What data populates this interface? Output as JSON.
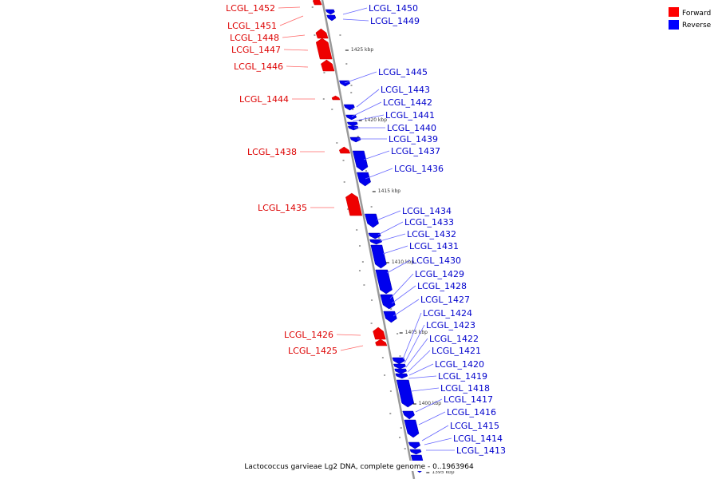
{
  "legend": {
    "forward_label": "Forward",
    "reverse_label": "Reverse",
    "forward_color": "#ff0000",
    "reverse_color": "#0000ff"
  },
  "caption": "Lactococcus garvieae Lg2 DNA, complete genome - 0..1963964",
  "scale_labels": [
    "1425 kbp",
    "1420 kbp",
    "1415 kbp",
    "1410 kbp",
    "1405 kbp",
    "1400 kbp",
    "1395 kbp"
  ],
  "forward_genes": [
    "LCGL_1452",
    "LCGL_1451",
    "LCGL_1448",
    "LCGL_1447",
    "LCGL_1446",
    "LCGL_1444",
    "LCGL_1438",
    "LCGL_1435",
    "LCGL_1426",
    "LCGL_1425"
  ],
  "reverse_genes": [
    "LCGL_1450",
    "LCGL_1449",
    "LCGL_1445",
    "LCGL_1443",
    "LCGL_1442",
    "LCGL_1441",
    "LCGL_1440",
    "LCGL_1439",
    "LCGL_1437",
    "LCGL_1436",
    "LCGL_1434",
    "LCGL_1433",
    "LCGL_1432",
    "LCGL_1431",
    "LCGL_1430",
    "LCGL_1429",
    "LCGL_1428",
    "LCGL_1427",
    "LCGL_1424",
    "LCGL_1423",
    "LCGL_1422",
    "LCGL_1421",
    "LCGL_1420",
    "LCGL_1419",
    "LCGL_1418",
    "LCGL_1417",
    "LCGL_1416",
    "LCGL_1415",
    "LCGL_1414",
    "LCGL_1413"
  ]
}
